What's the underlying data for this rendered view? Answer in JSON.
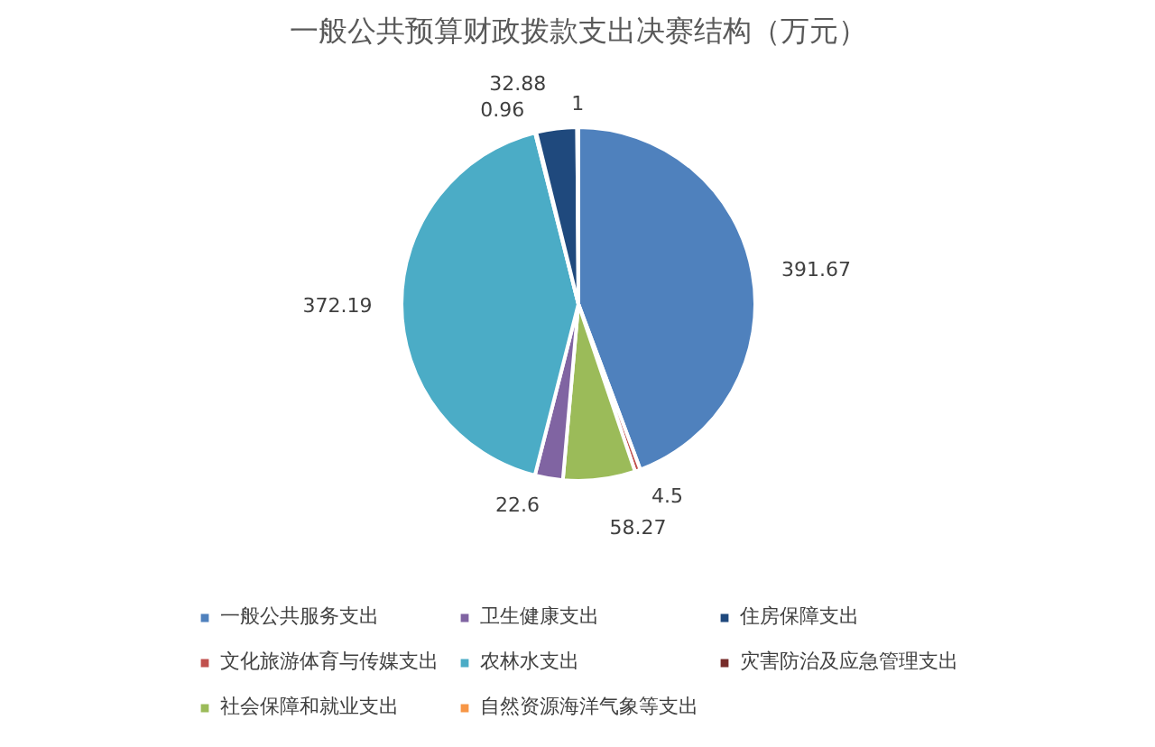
{
  "chart_data": {
    "type": "pie",
    "title": "一般公共预算财政拨款支出决赛结构（万元）",
    "categories": [
      "一般公共服务支出",
      "文化旅游体育与传媒支出",
      "社会保障和就业支出",
      "卫生健康支出",
      "农林水支出",
      "自然资源海洋气象等支出",
      "住房保障支出",
      "灾害防治及应急管理支出"
    ],
    "values": [
      391.67,
      4.5,
      58.27,
      22.6,
      372.19,
      0.96,
      32.88,
      1
    ],
    "colors": [
      "#4f81bd",
      "#c0504d",
      "#9bbb59",
      "#8064a2",
      "#4bacc6",
      "#f79646",
      "#1f497d",
      "#772c2a"
    ],
    "data_labels": true,
    "legend": "bottom"
  }
}
